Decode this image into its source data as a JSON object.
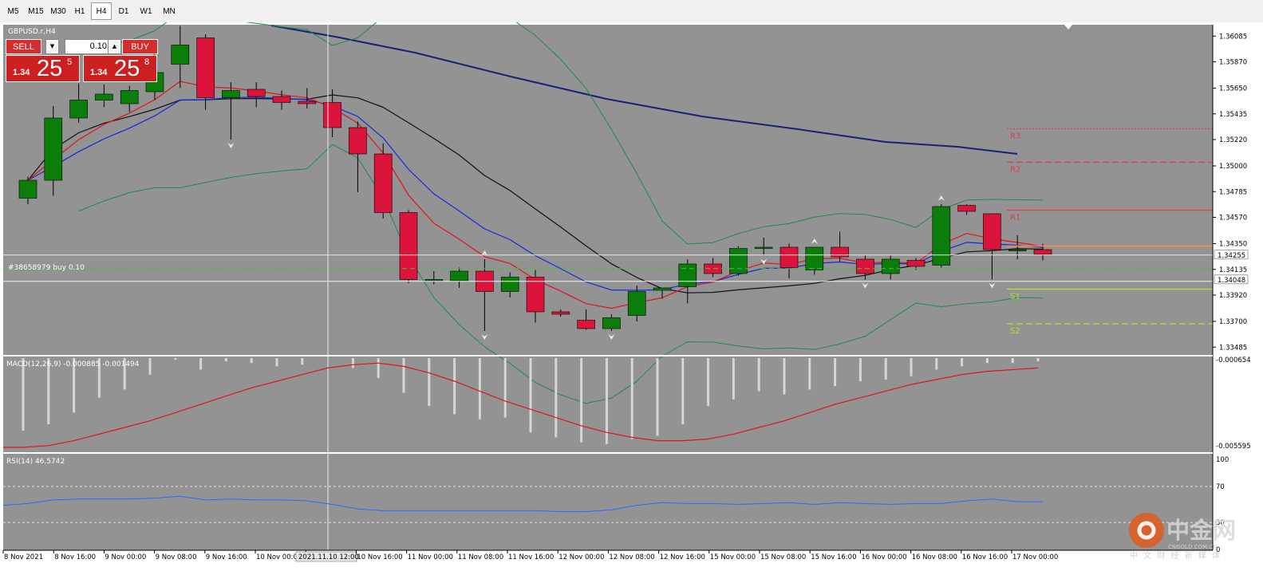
{
  "toolbar": {
    "timeframes": [
      "M5",
      "M15",
      "M30",
      "H1",
      "H4",
      "D1",
      "W1",
      "MN"
    ],
    "active": "H4"
  },
  "chart": {
    "symbol_label": "GBPUSD.r,H4",
    "order_line_label": "#38658979 buy 0.10",
    "price_axis": [
      "1.36085",
      "1.35870",
      "1.35650",
      "1.35435",
      "1.35220",
      "1.35000",
      "1.34785",
      "1.34570",
      "1.34350",
      "1.34135",
      "1.33920",
      "1.33700",
      "1.33485"
    ],
    "price_tags": {
      "bid": "1.34255",
      "order": "1.34048"
    },
    "pivots": [
      {
        "label": "R3",
        "price": 1.3531,
        "color": "#e03a4e",
        "style": "dotted"
      },
      {
        "label": "R2",
        "price": 1.3503,
        "color": "#e03a4e",
        "style": "dashed"
      },
      {
        "label": "R1",
        "price": 1.3463,
        "color": "#e03a4e",
        "style": "solid"
      },
      {
        "label": "S1",
        "price": 1.3397,
        "color": "#a8e62a",
        "style": "solid"
      },
      {
        "label": "S2",
        "price": 1.3368,
        "color": "#a8e62a",
        "style": "dashed"
      }
    ],
    "pivot_line": {
      "price": 1.3433,
      "color": "#ff8a4a"
    },
    "date_axis": [
      "8 Nov 2021",
      "8 Nov 16:00",
      "9 Nov 00:00",
      "9 Nov 08:00",
      "9 Nov 16:00",
      "10 Nov 00:00",
      "2021.11.10 12:00",
      "10 Nov 16:00",
      "11 Nov 00:00",
      "11 Nov 08:00",
      "11 Nov 16:00",
      "12 Nov 00:00",
      "12 Nov 08:00",
      "12 Nov 16:00",
      "15 Nov 00:00",
      "15 Nov 08:00",
      "15 Nov 16:00",
      "16 Nov 00:00",
      "16 Nov 08:00",
      "16 Nov 16:00",
      "17 Nov 00:00"
    ],
    "crosshair_label": "2021.11.10 12:00",
    "colors": {
      "background": "#939393",
      "bull": "#0a7d0a",
      "bear": "#dc143c",
      "wick": "#000000",
      "sma_slow": "#1a1f78",
      "ema_black": "#111111",
      "ema_red": "#e0141e",
      "ema_blue": "#1428e0",
      "bands": "#1f8a46"
    },
    "candles_ohlc": [
      [
        1.3473,
        1.3491,
        1.3468,
        1.3488
      ],
      [
        1.3488,
        1.355,
        1.3475,
        1.354
      ],
      [
        1.354,
        1.3569,
        1.3536,
        1.3555
      ],
      [
        1.3555,
        1.3568,
        1.3549,
        1.356
      ],
      [
        1.3552,
        1.3567,
        1.3545,
        1.3563
      ],
      [
        1.3562,
        1.3605,
        1.3555,
        1.3578
      ],
      [
        1.3585,
        1.3617,
        1.3565,
        1.3601
      ],
      [
        1.3607,
        1.361,
        1.3547,
        1.3557
      ],
      [
        1.3557,
        1.357,
        1.3522,
        1.3563
      ],
      [
        1.3564,
        1.357,
        1.3549,
        1.3558
      ],
      [
        1.3558,
        1.3563,
        1.3547,
        1.3553
      ],
      [
        1.3554,
        1.3565,
        1.3548,
        1.3552
      ],
      [
        1.3553,
        1.3564,
        1.3524,
        1.3532
      ],
      [
        1.3532,
        1.3537,
        1.3478,
        1.351
      ],
      [
        1.351,
        1.3519,
        1.3456,
        1.3461
      ],
      [
        1.3461,
        1.3463,
        1.3402,
        1.3405
      ],
      [
        1.3404,
        1.3412,
        1.3401,
        1.3405
      ],
      [
        1.3404,
        1.3415,
        1.3398,
        1.3412
      ],
      [
        1.3412,
        1.3422,
        1.3362,
        1.3395
      ],
      [
        1.3395,
        1.3411,
        1.339,
        1.3407
      ],
      [
        1.3407,
        1.3413,
        1.3369,
        1.3378
      ],
      [
        1.3378,
        1.338,
        1.3374,
        1.3376
      ],
      [
        1.3371,
        1.338,
        1.3363,
        1.3364
      ],
      [
        1.3364,
        1.3376,
        1.3362,
        1.3373
      ],
      [
        1.3375,
        1.34,
        1.337,
        1.3395
      ],
      [
        1.3396,
        1.3398,
        1.3389,
        1.3398
      ],
      [
        1.3399,
        1.3422,
        1.3385,
        1.3418
      ],
      [
        1.3418,
        1.3423,
        1.3407,
        1.341
      ],
      [
        1.341,
        1.3433,
        1.3408,
        1.3431
      ],
      [
        1.3431,
        1.344,
        1.3425,
        1.3432
      ],
      [
        1.3432,
        1.3435,
        1.3406,
        1.3415
      ],
      [
        1.3413,
        1.3432,
        1.3409,
        1.3432
      ],
      [
        1.3432,
        1.3445,
        1.342,
        1.3424
      ],
      [
        1.3422,
        1.3425,
        1.3405,
        1.341
      ],
      [
        1.341,
        1.3425,
        1.3405,
        1.3422
      ],
      [
        1.3421,
        1.3423,
        1.3413,
        1.3416
      ],
      [
        1.3417,
        1.3468,
        1.3415,
        1.3466
      ],
      [
        1.3467,
        1.3468,
        1.3459,
        1.3462
      ],
      [
        1.346,
        1.346,
        1.3405,
        1.343
      ],
      [
        1.3429,
        1.3442,
        1.3422,
        1.343
      ],
      [
        1.343,
        1.3435,
        1.3421,
        1.3426
      ]
    ],
    "macd": {
      "label": "MACD(12,26,9) -0.000885 -0.001494",
      "axis": [
        "-0.000654",
        "-0.005595"
      ],
      "histogram": [
        -0.0046,
        -0.0042,
        -0.0035,
        -0.0026,
        -0.0021,
        -0.0012,
        -0.0003,
        -0.0009,
        -0.0004,
        -0.0005,
        -0.0007,
        -0.0006,
        -0.0002,
        -0.0008,
        -0.0014,
        -0.0023,
        -0.0031,
        -0.0036,
        -0.0039,
        -0.0038,
        -0.0047,
        -0.005,
        -0.0053,
        -0.0054,
        -0.0051,
        -0.0049,
        -0.0042,
        -0.0031,
        -0.0027,
        -0.0022,
        -0.0024,
        -0.0021,
        -0.0019,
        -0.0016,
        -0.0015,
        -0.0013,
        -0.0009,
        -0.0007,
        -0.0005,
        -0.0005,
        -0.0004
      ],
      "signal": [
        -0.0056,
        -0.0055,
        -0.0052,
        -0.0048,
        -0.0044,
        -0.004,
        -0.0035,
        -0.003,
        -0.0025,
        -0.002,
        -0.0016,
        -0.0012,
        -0.0008,
        -0.0006,
        -0.0005,
        -0.0007,
        -0.0011,
        -0.0016,
        -0.0022,
        -0.0028,
        -0.0033,
        -0.0038,
        -0.0043,
        -0.0047,
        -0.005,
        -0.0052,
        -0.0052,
        -0.0051,
        -0.0048,
        -0.0044,
        -0.004,
        -0.0035,
        -0.003,
        -0.0026,
        -0.0022,
        -0.0018,
        -0.0015,
        -0.0012,
        -0.001,
        -0.0009,
        -0.0008
      ]
    },
    "rsi": {
      "label": "RSI(14) 46.5742",
      "axis": [
        "100",
        "70",
        "30",
        "0"
      ],
      "values": [
        51,
        55,
        56,
        56,
        56,
        57,
        59,
        55,
        56,
        55,
        55,
        54,
        50,
        45,
        43,
        43,
        43,
        43,
        43,
        43,
        43,
        42,
        42,
        44,
        49,
        52,
        51,
        51,
        50,
        51,
        52,
        50,
        52,
        51,
        50,
        51,
        51,
        54,
        56,
        53,
        53
      ]
    }
  },
  "trade": {
    "sell": "SELL",
    "buy": "BUY",
    "volume": "0.10",
    "sell_prefix": "1.34",
    "sell_main": "25",
    "sell_sup": "5",
    "buy_prefix": "1.34",
    "buy_main": "25",
    "buy_sup": "8"
  },
  "watermark": {
    "brand": "中金网",
    "sub": "中 文 财 经 新 媒 体",
    "url": "CNGOLD.COM.CN"
  }
}
